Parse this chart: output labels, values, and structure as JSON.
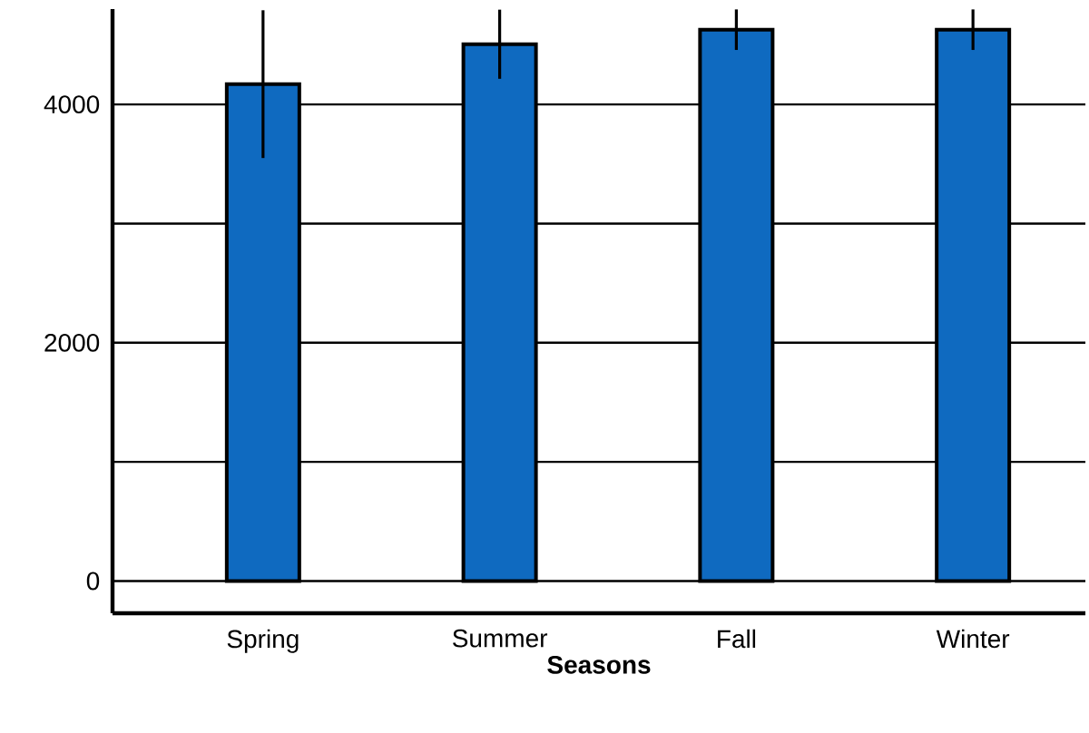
{
  "chart_data": {
    "type": "bar",
    "xlabel": "Seasons",
    "categories": [
      "Spring",
      "Summer",
      "Fall",
      "Winter"
    ],
    "values": [
      4170,
      4505,
      4627,
      4627
    ],
    "errors": [
      620,
      290,
      170,
      170
    ],
    "color": "#0f6ac0",
    "ylim": [
      -270,
      4800
    ],
    "yticks": [
      0,
      {
        "value": 1000,
        "label": null
      },
      2000,
      {
        "value": 3000,
        "label": null
      },
      4000
    ],
    "grid": "y"
  }
}
